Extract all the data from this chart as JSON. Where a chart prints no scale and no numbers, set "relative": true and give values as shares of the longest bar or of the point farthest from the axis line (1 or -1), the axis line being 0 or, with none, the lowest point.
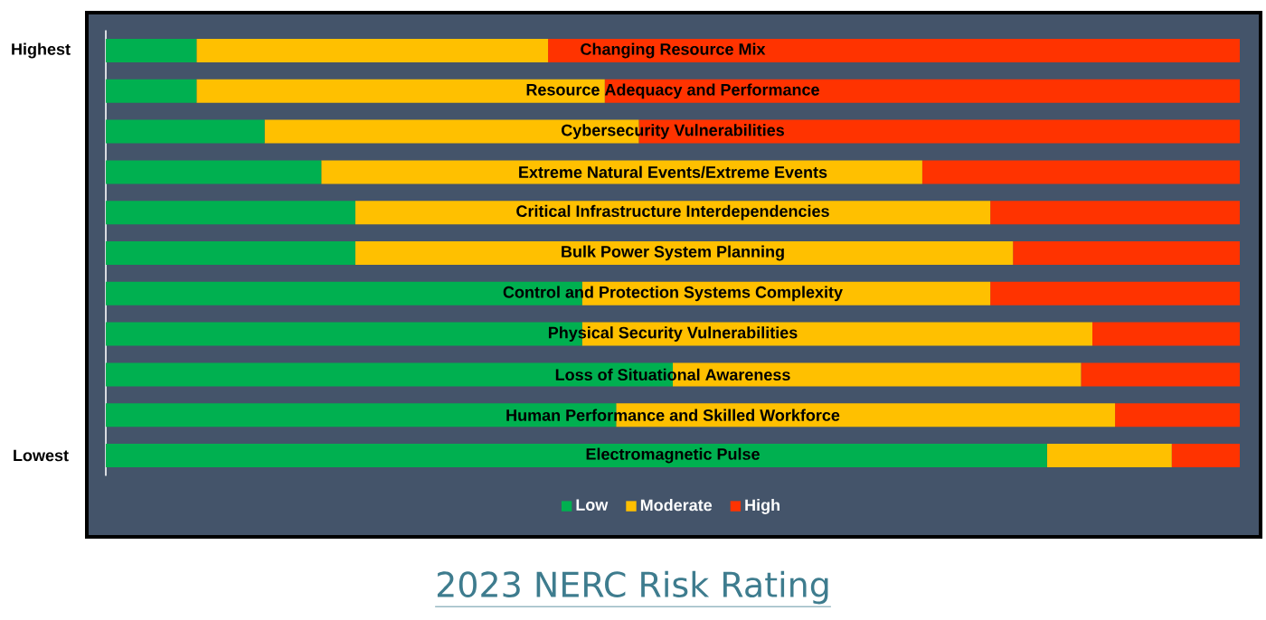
{
  "chart_data": {
    "type": "bar",
    "orientation": "horizontal",
    "stacked": true,
    "relative": true,
    "title": "2023 NERC Risk Rating",
    "categories": [
      "Changing Resource Mix",
      "Resource Adequacy and Performance",
      "Cybersecurity Vulnerabilities",
      "Extreme Natural Events/Extreme Events",
      "Critical Infrastructure Interdependencies",
      "Bulk Power System Planning",
      "Control and Protection Systems Complexity",
      "Physical Security Vulnerabilities",
      "Loss of Situational Awareness",
      "Human Performance and Skilled Workforce",
      "Electromagnetic Pulse"
    ],
    "series": [
      {
        "name": "Low",
        "color": "#00b050",
        "values": [
          0.08,
          0.08,
          0.14,
          0.19,
          0.22,
          0.22,
          0.42,
          0.42,
          0.5,
          0.45,
          0.83
        ]
      },
      {
        "name": "Moderate",
        "color": "#ffc000",
        "values": [
          0.31,
          0.36,
          0.33,
          0.53,
          0.56,
          0.58,
          0.36,
          0.45,
          0.36,
          0.44,
          0.11
        ]
      },
      {
        "name": "High",
        "color": "#ff3300",
        "values": [
          0.61,
          0.56,
          0.53,
          0.28,
          0.22,
          0.2,
          0.22,
          0.13,
          0.14,
          0.11,
          0.06
        ]
      }
    ],
    "annotations": [
      "Highest",
      "Lowest"
    ],
    "legend": "bottom"
  }
}
